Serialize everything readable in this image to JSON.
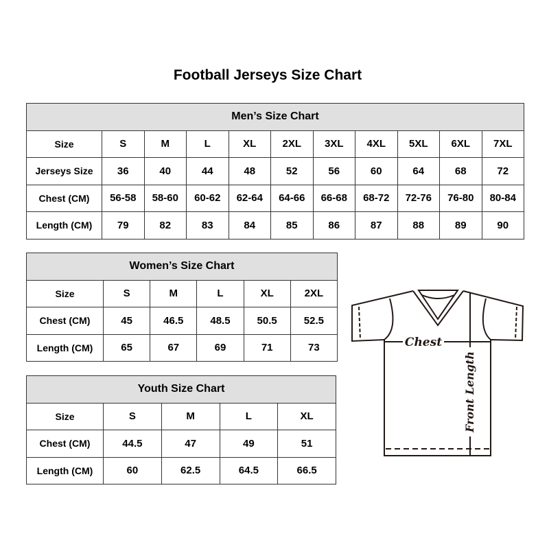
{
  "title": "Football Jerseys Size Chart",
  "men": {
    "title": "Men’s Size Chart",
    "rows": [
      {
        "label": "Size",
        "values": [
          "S",
          "M",
          "L",
          "XL",
          "2XL",
          "3XL",
          "4XL",
          "5XL",
          "6XL",
          "7XL"
        ]
      },
      {
        "label": "Jerseys Size",
        "values": [
          "36",
          "40",
          "44",
          "48",
          "52",
          "56",
          "60",
          "64",
          "68",
          "72"
        ]
      },
      {
        "label": "Chest (CM)",
        "values": [
          "56-58",
          "58-60",
          "60-62",
          "62-64",
          "64-66",
          "66-68",
          "68-72",
          "72-76",
          "76-80",
          "80-84"
        ]
      },
      {
        "label": "Length (CM)",
        "values": [
          "79",
          "82",
          "83",
          "84",
          "85",
          "86",
          "87",
          "88",
          "89",
          "90"
        ]
      }
    ]
  },
  "women": {
    "title": "Women’s Size Chart",
    "rows": [
      {
        "label": "Size",
        "values": [
          "S",
          "M",
          "L",
          "XL",
          "2XL"
        ]
      },
      {
        "label": "Chest (CM)",
        "values": [
          "45",
          "46.5",
          "48.5",
          "50.5",
          "52.5"
        ]
      },
      {
        "label": "Length (CM)",
        "values": [
          "65",
          "67",
          "69",
          "71",
          "73"
        ]
      }
    ]
  },
  "youth": {
    "title": "Youth Size Chart",
    "rows": [
      {
        "label": "Size",
        "values": [
          "S",
          "M",
          "L",
          "XL"
        ]
      },
      {
        "label": "Chest (CM)",
        "values": [
          "44.5",
          "47",
          "49",
          "51"
        ]
      },
      {
        "label": "Length (CM)",
        "values": [
          "60",
          "62.5",
          "64.5",
          "66.5"
        ]
      }
    ]
  },
  "diagram": {
    "chest_label": "Chest",
    "length_label": "Front Length"
  }
}
